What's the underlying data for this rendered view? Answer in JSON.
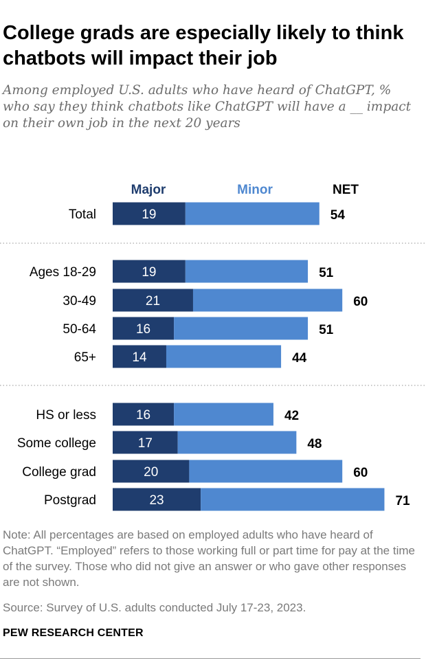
{
  "header": {
    "title": "College grads are especially likely to think chatbots will impact their job",
    "subtitle": "Among employed U.S. adults who have heard of ChatGPT, % who say they think chatbots like ChatGPT will have a __ impact on their own job in the next 20 years"
  },
  "footer": {
    "note": "Note: All percentages are based on employed adults who have heard of ChatGPT. “Employed” refers to those working full or part time for pay at the time of the survey. Those who did not give an answer or who gave other responses are not shown.",
    "source": "Source: Survey of U.S. adults conducted July 17-23, 2023.",
    "logo": "PEW RESEARCH CENTER"
  },
  "colors": {
    "major": "#1f3d6e",
    "minor": "#4f88d0",
    "divider": "#b5b5b5"
  },
  "chart_data": {
    "type": "bar",
    "orientation": "horizontal",
    "stacked": true,
    "legend": [
      "Major",
      "Minor",
      "NET"
    ],
    "legend_placement": "top",
    "categories": [
      "Total",
      "Ages 18-29",
      "30-49",
      "50-64",
      "65+",
      "HS or less",
      "Some college",
      "College grad",
      "Postgrad"
    ],
    "groups": [
      [
        "Total"
      ],
      [
        "Ages 18-29",
        "30-49",
        "50-64",
        "65+"
      ],
      [
        "HS or less",
        "Some college",
        "College grad",
        "Postgrad"
      ]
    ],
    "series": [
      {
        "name": "Major",
        "values": [
          19,
          19,
          21,
          16,
          14,
          16,
          17,
          20,
          23
        ]
      },
      {
        "name": "Minor",
        "values": [
          35,
          32,
          39,
          35,
          30,
          26,
          31,
          40,
          48
        ]
      }
    ],
    "net": [
      54,
      51,
      60,
      51,
      44,
      42,
      48,
      60,
      71
    ],
    "grid": false
  }
}
